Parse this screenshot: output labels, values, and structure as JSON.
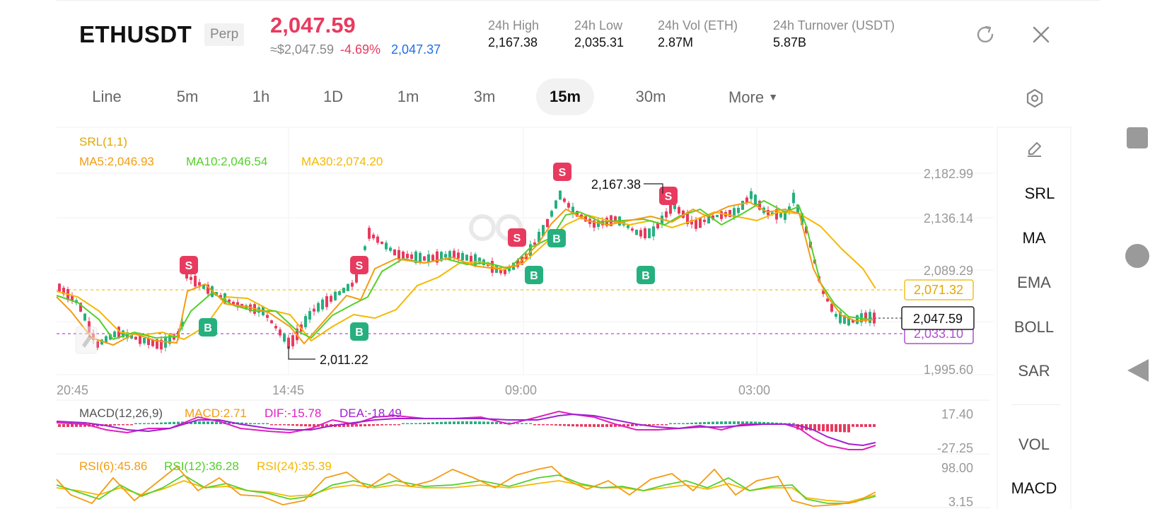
{
  "header": {
    "symbol": "ETHUSDT",
    "contract_type": "Perp",
    "last_price": "2,047.59",
    "approx_price": "≈$2,047.59",
    "change_pct": "-4.69%",
    "mark_price": "2,047.37",
    "stats": [
      {
        "label": "24h  High",
        "value": "2,167.38"
      },
      {
        "label": "24h  Low",
        "value": "2,035.31"
      },
      {
        "label": "24h  Vol (ETH)",
        "value": "2.87M"
      },
      {
        "label": "24h  Turnover (USDT)",
        "value": "5.87B"
      }
    ]
  },
  "timeframes": {
    "items": [
      "Line",
      "5m",
      "1h",
      "1D",
      "1m",
      "3m",
      "15m",
      "30m",
      "More"
    ],
    "active": "15m"
  },
  "indicators": {
    "srl": "SRL(1,1)",
    "ma5": "MA5:2,046.93",
    "ma10": "MA10:2,046.54",
    "ma30": "MA30:2,074.20",
    "macd_title": "MACD(12,26,9)",
    "macd_val": "MACD:2.71",
    "dif": "DIF:-15.78",
    "dea": "DEA:-18.49",
    "rsi6": "RSI(6):45.86",
    "rsi12": "RSI(12):36.28",
    "rsi24": "RSI(24):35.39"
  },
  "price_axis": [
    "2,182.99",
    "2,136.14",
    "2,089.29",
    "1,995.60"
  ],
  "price_tags": {
    "resistance": "2,071.32",
    "current": "2,047.59",
    "support": "2,033.10"
  },
  "annotations": {
    "high": "2,167.38",
    "low": "2,011.22"
  },
  "time_axis": [
    "20:45",
    "14:45",
    "09:00",
    "03:00"
  ],
  "macd_axis": [
    "17.40",
    "-27.25"
  ],
  "rsi_axis": [
    "98.00",
    "3.15"
  ],
  "signals": {
    "sell": "S",
    "buy": "B"
  },
  "right_panel": {
    "main_items": [
      "SRL",
      "MA",
      "EMA",
      "BOLL",
      "SAR"
    ],
    "sub_items": [
      "VOL",
      "MACD"
    ]
  },
  "colors": {
    "up": "#26b07f",
    "down": "#e83a5f",
    "ma5": "#f39c12",
    "ma10": "#52d02a",
    "ma30": "#f5b800",
    "dif": "#e020c0",
    "dea": "#a020d0",
    "support": "#b04fd0",
    "resistance": "#f0c020",
    "mark": "#1f6fe6"
  },
  "icons": [
    "refresh-icon",
    "close-icon",
    "chart-settings-icon",
    "pencil-icon",
    "square-nav-icon",
    "circle-nav-icon",
    "back-nav-icon",
    "watermark-logo"
  ]
}
